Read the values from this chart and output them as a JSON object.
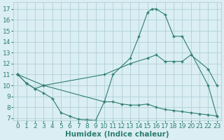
{
  "background_color": "#daeef3",
  "line_color": "#2e7d6e",
  "grid_color": "#b0d0d8",
  "xlabel": "Humidex (Indice chaleur)",
  "xlim": [
    -0.5,
    23.5
  ],
  "ylim": [
    6.8,
    17.6
  ],
  "xticks": [
    0,
    1,
    2,
    3,
    4,
    5,
    6,
    7,
    8,
    9,
    10,
    11,
    12,
    13,
    14,
    15,
    16,
    17,
    18,
    19,
    20,
    21,
    22,
    23
  ],
  "yticks": [
    7,
    8,
    9,
    10,
    11,
    12,
    13,
    14,
    15,
    16,
    17
  ],
  "lines": [
    {
      "x": [
        0,
        1,
        2,
        3,
        10,
        11,
        13,
        14,
        15,
        15.5,
        16,
        17,
        18,
        19,
        22,
        23
      ],
      "y": [
        11,
        10.2,
        9.7,
        10.0,
        8.5,
        11.0,
        12.5,
        14.5,
        16.7,
        17.0,
        17.0,
        16.5,
        14.5,
        14.5,
        10.0,
        7.2
      ]
    },
    {
      "x": [
        0,
        3,
        10,
        13,
        15,
        16,
        17,
        18,
        19,
        20,
        22,
        23
      ],
      "y": [
        11,
        10.0,
        11.0,
        12.0,
        12.5,
        12.8,
        12.2,
        12.2,
        12.2,
        12.8,
        11.5,
        10.0
      ]
    },
    {
      "x": [
        0,
        1,
        2,
        3,
        4,
        5,
        6,
        7,
        8,
        9,
        10,
        11,
        12,
        13,
        14,
        15,
        16,
        17,
        18,
        19,
        20,
        21,
        22,
        23
      ],
      "y": [
        11,
        10.2,
        9.7,
        9.3,
        8.8,
        7.5,
        7.2,
        6.9,
        6.85,
        6.8,
        8.5,
        8.5,
        8.3,
        8.2,
        8.2,
        8.3,
        8.0,
        7.8,
        7.7,
        7.6,
        7.5,
        7.4,
        7.3,
        7.2
      ]
    }
  ],
  "font_color": "#2e7d6e",
  "tick_fontsize": 6.5,
  "label_fontsize": 7.5
}
